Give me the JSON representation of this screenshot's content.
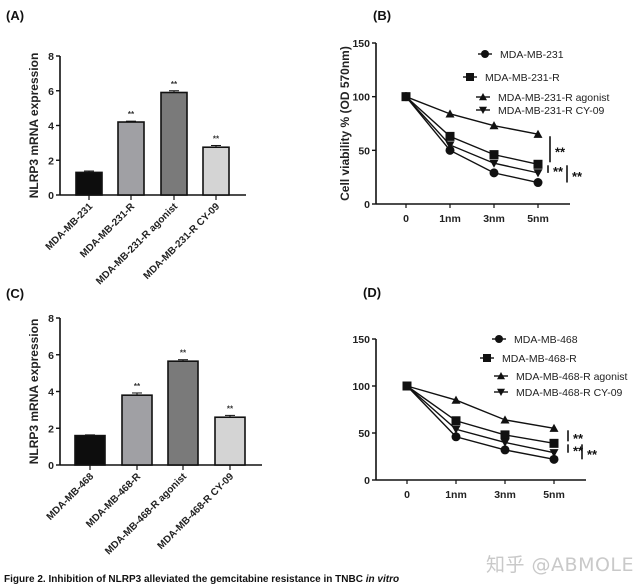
{
  "figure": {
    "caption_main": "Figure 2. Inhibition of NLRP3 alleviated the gemcitabine resistance in TNBC ",
    "caption_italic": "in vitro",
    "watermark": "知乎 @ABMOLE"
  },
  "chart_data": [
    {
      "panel": "(A)",
      "type": "bar",
      "title": "",
      "xlabel": "",
      "ylabel": "NLRP3 mRNA expression",
      "ylim": [
        0,
        8
      ],
      "yticks": [
        0,
        2,
        4,
        6,
        8
      ],
      "categories": [
        "MDA-MB-231",
        "MDA-MB-231-R",
        "MDA-MB-231-R agonist",
        "MDA-MB-231-R CY-09"
      ],
      "values": [
        1.3,
        4.2,
        5.9,
        2.75
      ],
      "errors": [
        0.08,
        0.05,
        0.1,
        0.1
      ],
      "significance": [
        "",
        "**",
        "**",
        "**"
      ],
      "colors": [
        "#0d0d0d",
        "#a0a0a4",
        "#7a7a7a",
        "#d4d4d4"
      ]
    },
    {
      "panel": "(B)",
      "type": "line",
      "title": "",
      "xlabel": "",
      "ylabel": "Cell viability % (OD 570nm)",
      "ylim": [
        0,
        150
      ],
      "yticks": [
        0,
        50,
        100,
        150
      ],
      "x": [
        "0",
        "1nm",
        "3nm",
        "5nm"
      ],
      "series": [
        {
          "name": "MDA-MB-231",
          "marker": "circle",
          "values": [
            100,
            50,
            29,
            20
          ]
        },
        {
          "name": "MDA-MB-231-R",
          "marker": "square",
          "values": [
            100,
            63,
            46,
            37
          ]
        },
        {
          "name": "MDA-MB-231-R agonist",
          "marker": "triangle-up",
          "values": [
            100,
            84,
            73,
            65
          ]
        },
        {
          "name": "MDA-MB-231-R CY-09",
          "marker": "triangle-down",
          "values": [
            100,
            55,
            38,
            29
          ]
        }
      ],
      "significance": [
        {
          "between": [
            "MDA-MB-231-R agonist",
            "MDA-MB-231-R"
          ],
          "label": "**"
        },
        {
          "between": [
            "MDA-MB-231-R",
            "MDA-MB-231-R CY-09"
          ],
          "label": "**"
        },
        {
          "between": [
            "MDA-MB-231-R",
            "MDA-MB-231"
          ],
          "label": "**"
        }
      ],
      "legend": "top-right"
    },
    {
      "panel": "(C)",
      "type": "bar",
      "title": "",
      "xlabel": "",
      "ylabel": "NLRP3 mRNA expression",
      "ylim": [
        0,
        8
      ],
      "yticks": [
        0,
        2,
        4,
        6,
        8
      ],
      "categories": [
        "MDA-MB-468",
        "MDA-MB-468-R",
        "MDA-MB-468-R agonist",
        "MDA-MB-468-R CY-09"
      ],
      "values": [
        1.6,
        3.8,
        5.65,
        2.6
      ],
      "errors": [
        0.04,
        0.12,
        0.08,
        0.1
      ],
      "significance": [
        "",
        "**",
        "**",
        "**"
      ],
      "colors": [
        "#0d0d0d",
        "#a0a0a4",
        "#7a7a7a",
        "#d4d4d4"
      ]
    },
    {
      "panel": "(D)",
      "type": "line",
      "title": "",
      "xlabel": "",
      "ylabel": "",
      "ylim": [
        0,
        150
      ],
      "yticks": [
        0,
        50,
        100,
        150
      ],
      "x": [
        "0",
        "1nm",
        "3nm",
        "5nm"
      ],
      "series": [
        {
          "name": "MDA-MB-468",
          "marker": "circle",
          "values": [
            100,
            46,
            32,
            22
          ]
        },
        {
          "name": "MDA-MB-468-R",
          "marker": "square",
          "values": [
            100,
            63,
            48,
            39
          ]
        },
        {
          "name": "MDA-MB-468-R agonist",
          "marker": "triangle-up",
          "values": [
            100,
            85,
            64,
            55
          ]
        },
        {
          "name": "MDA-MB-468-R CY-09",
          "marker": "triangle-down",
          "values": [
            100,
            54,
            40,
            29
          ]
        }
      ],
      "significance": [
        {
          "between": [
            "MDA-MB-468-R agonist",
            "MDA-MB-468-R"
          ],
          "label": "**"
        },
        {
          "between": [
            "MDA-MB-468-R",
            "MDA-MB-468-R CY-09"
          ],
          "label": "**"
        },
        {
          "between": [
            "MDA-MB-468-R",
            "MDA-MB-468"
          ],
          "label": "**"
        }
      ],
      "legend": "top-right"
    }
  ]
}
